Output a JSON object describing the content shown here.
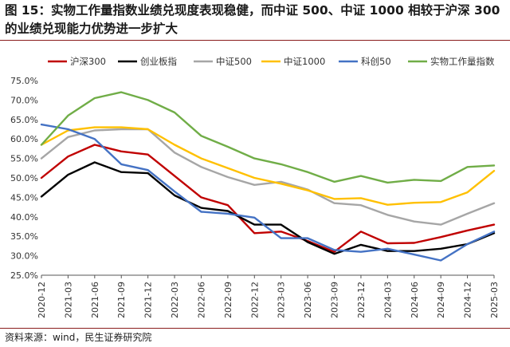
{
  "header": {
    "title": "图 15：实物工作量指数业绩兑现度表现稳健，而中证 500、中证 1000 相较于沪深 300 的业绩兑现能力优势进一步扩大"
  },
  "footer": {
    "source": "资料来源：wind，民生证券研究院"
  },
  "chart_data": {
    "type": "line",
    "title": "",
    "xlabel": "",
    "ylabel": "",
    "ylim": [
      25,
      75
    ],
    "yticks": [
      "25.0%",
      "30.0%",
      "35.0%",
      "40.0%",
      "45.0%",
      "50.0%",
      "55.0%",
      "60.0%",
      "65.0%",
      "70.0%",
      "75.0%"
    ],
    "grid": false,
    "legend": "top",
    "x": [
      "2020-12",
      "2021-03",
      "2021-06",
      "2021-09",
      "2021-12",
      "2022-03",
      "2022-06",
      "2022-09",
      "2022-12",
      "2023-03",
      "2023-06",
      "2023-09",
      "2023-12",
      "2024-03",
      "2024-06",
      "2024-09",
      "2024-12",
      "2025-03"
    ],
    "series": [
      {
        "name": "沪深300",
        "color": "#c00000",
        "values": [
          50.0,
          55.5,
          58.5,
          56.8,
          56.0,
          50.5,
          45.0,
          43.0,
          35.8,
          36.2,
          33.8,
          31.0,
          36.2,
          33.2,
          33.3,
          34.8,
          36.5,
          38.0
        ]
      },
      {
        "name": "创业板指",
        "color": "#000000",
        "values": [
          45.2,
          50.8,
          54.0,
          51.5,
          51.2,
          45.5,
          42.3,
          41.5,
          38.0,
          38.0,
          33.5,
          30.5,
          32.8,
          31.2,
          31.2,
          31.8,
          33.0,
          35.8
        ]
      },
      {
        "name": "中证500",
        "color": "#a6a6a6",
        "values": [
          55.0,
          60.5,
          62.2,
          62.5,
          62.5,
          56.5,
          52.8,
          50.2,
          48.2,
          49.0,
          47.0,
          43.5,
          43.0,
          40.5,
          38.8,
          38.0,
          40.8,
          43.5
        ]
      },
      {
        "name": "中证1000",
        "color": "#ffc000",
        "values": [
          58.5,
          62.2,
          63.0,
          63.0,
          62.5,
          58.5,
          55.0,
          52.5,
          50.0,
          48.5,
          46.8,
          44.6,
          44.8,
          43.1,
          43.6,
          43.8,
          46.3,
          51.8
        ]
      },
      {
        "name": "科创50",
        "color": "#4472c4",
        "values": [
          63.7,
          62.5,
          60.0,
          53.5,
          52.0,
          46.5,
          41.3,
          40.8,
          39.8,
          34.5,
          34.5,
          31.5,
          31.0,
          31.8,
          30.3,
          28.8,
          33.0,
          36.2
        ]
      },
      {
        "name": "实物工作量指数",
        "color": "#70ad47",
        "values": [
          58.5,
          66.0,
          70.5,
          72.0,
          70.0,
          66.8,
          60.8,
          58.0,
          55.0,
          53.5,
          51.5,
          49.0,
          50.5,
          48.8,
          49.5,
          49.2,
          52.8,
          53.2
        ]
      }
    ]
  }
}
